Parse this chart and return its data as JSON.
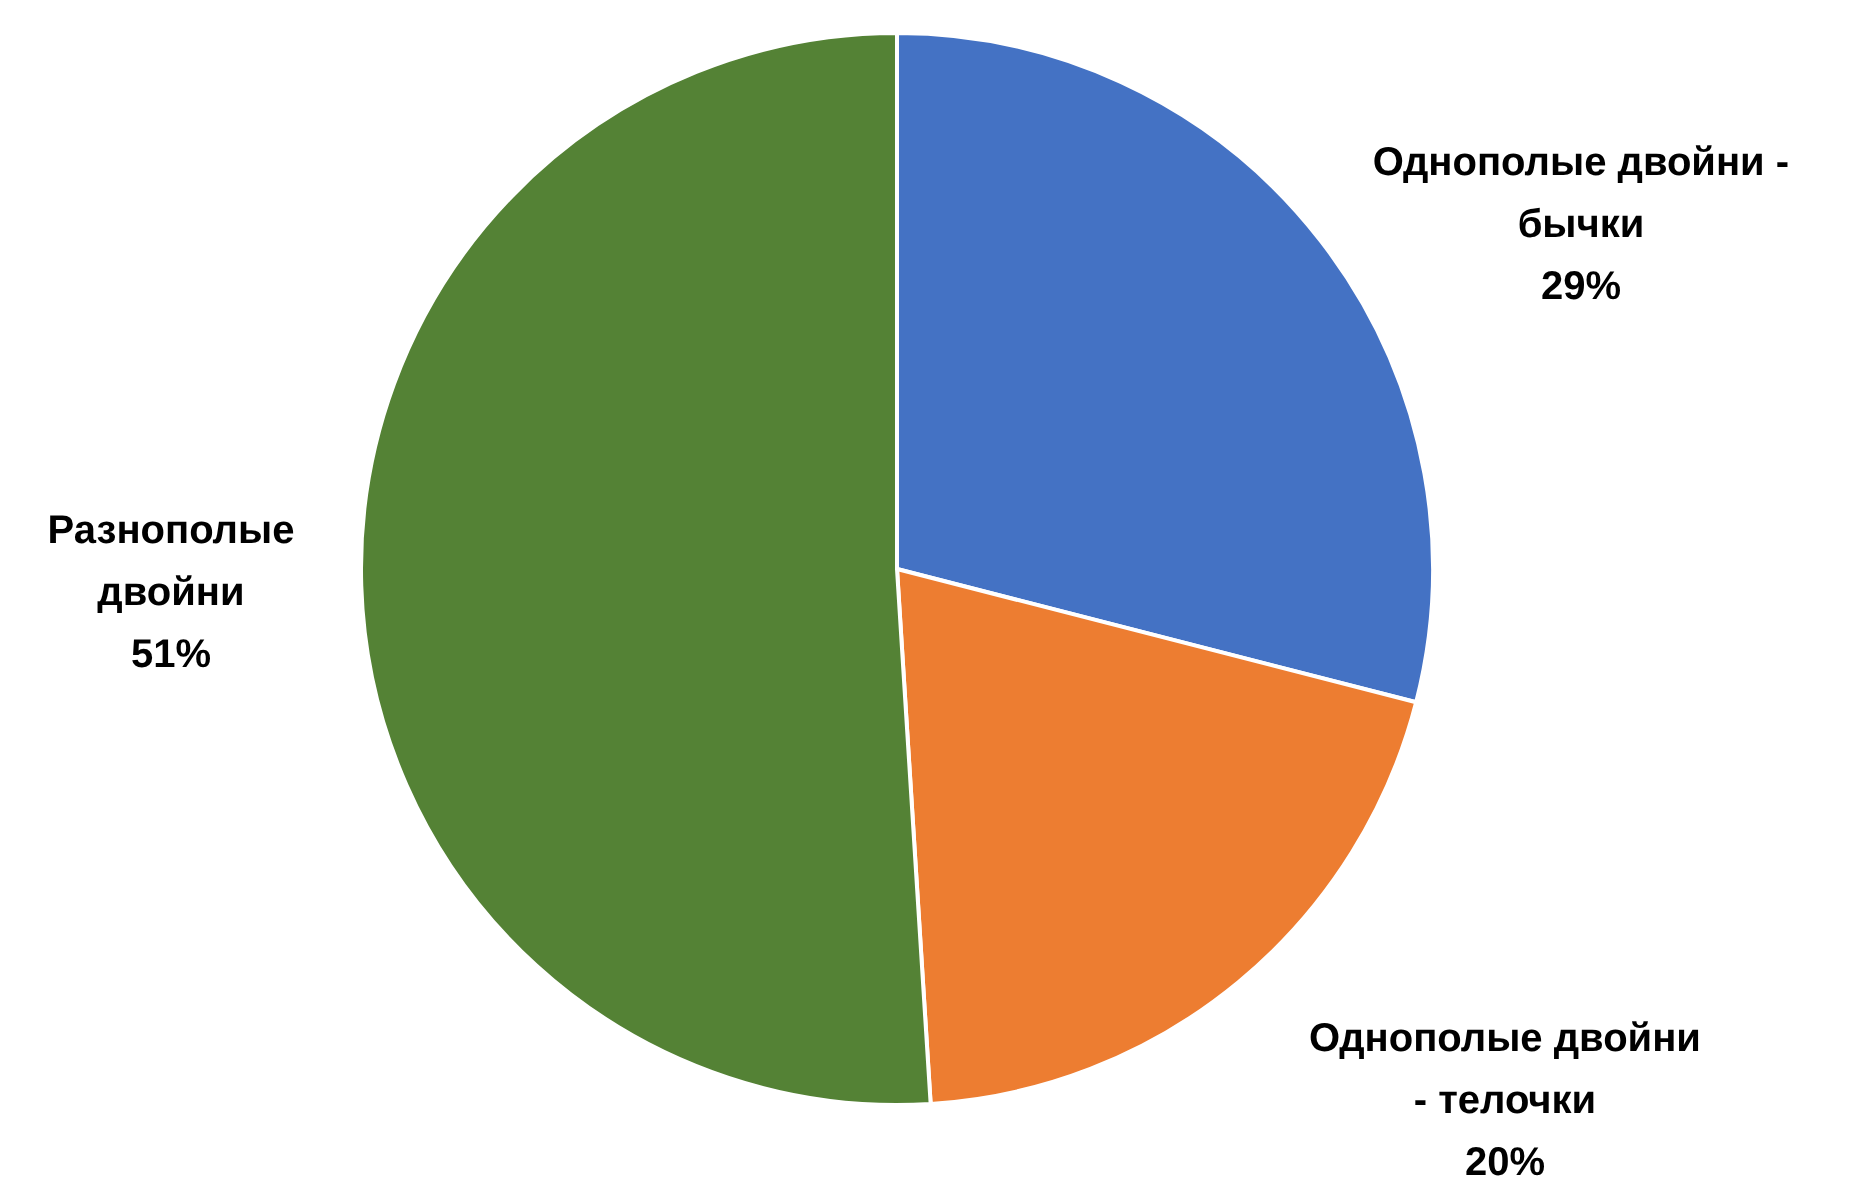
{
  "chart_data": {
    "type": "pie",
    "categories": [
      "Однополые двойни - бычки",
      "Однополые двойни - телочки",
      "Разнополые двойни"
    ],
    "values": [
      29,
      20,
      51
    ],
    "colors": [
      "#4472c4",
      "#ed7d31",
      "#548235"
    ],
    "value_labels": [
      "29%",
      "20%",
      "51%"
    ]
  }
}
